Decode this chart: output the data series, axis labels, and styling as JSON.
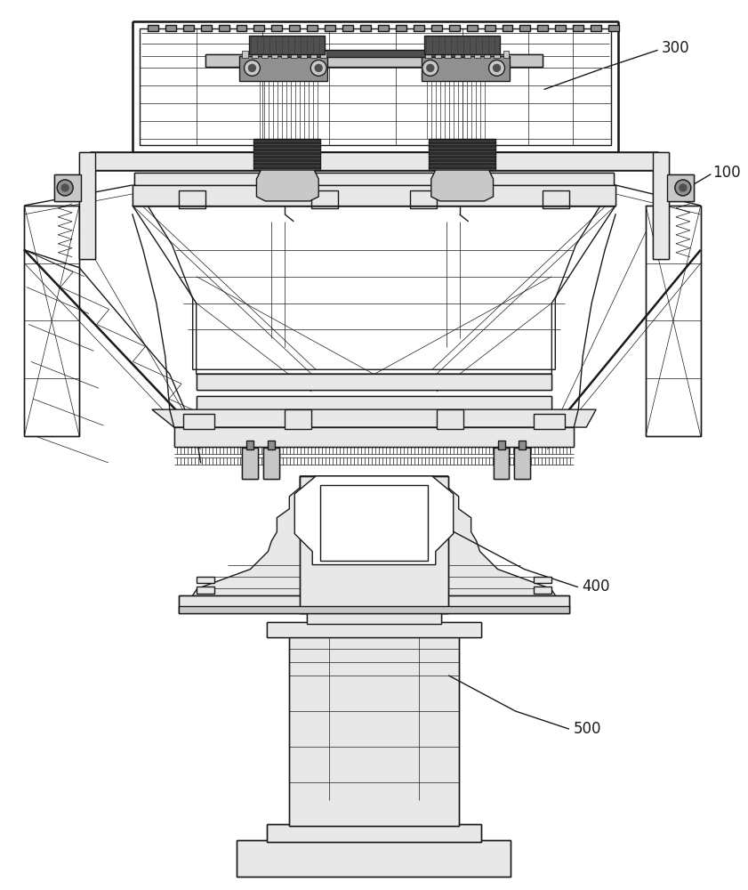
{
  "background_color": "#ffffff",
  "line_color": "#1a1a1a",
  "label_100": "100",
  "label_300": "300",
  "label_400": "400",
  "label_500": "500",
  "label_fontsize": 12
}
